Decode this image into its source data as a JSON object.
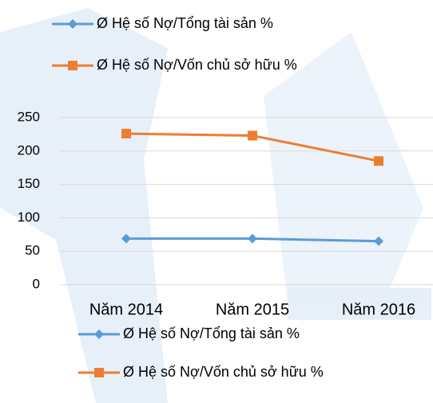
{
  "chart_data": {
    "type": "line",
    "categories": [
      "Năm 2014",
      "Năm 2015",
      "Năm 2016"
    ],
    "series": [
      {
        "name": "Ø  Hệ số Nợ/Tổng tài sản %",
        "color": "#5b9bd5",
        "marker": "diamond",
        "values": [
          69,
          69,
          65
        ]
      },
      {
        "name": "Ø  Hệ số Nợ/Vốn chủ sở hữu %",
        "color": "#ed7d31",
        "marker": "square",
        "values": [
          226,
          223,
          185
        ]
      }
    ],
    "ylim": [
      0,
      250
    ],
    "yticks": [
      0,
      50,
      100,
      150,
      200,
      250
    ],
    "grid": true
  }
}
